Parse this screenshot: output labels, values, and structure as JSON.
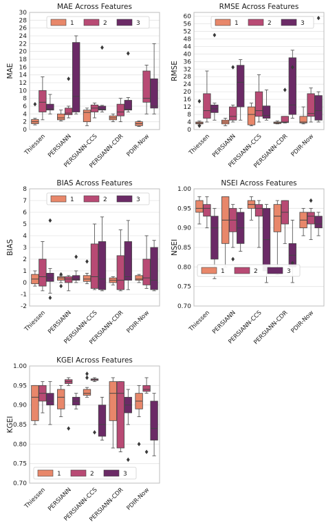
{
  "colors": {
    "series": [
      "#E8876A",
      "#B84A74",
      "#6B2A66"
    ],
    "axes_bg": "#ffffff",
    "grid": "#e4e4e4",
    "frame": "#bdbdbd",
    "whisker": "#444444"
  },
  "chart_data": [
    {
      "type": "box",
      "title": "MAE Across Features",
      "xlabel": "",
      "ylabel": "MAE",
      "ylim": [
        0,
        30
      ],
      "yticks": [
        0,
        2,
        4,
        6,
        8,
        10,
        12,
        14,
        16,
        18,
        20,
        22,
        24,
        26,
        28,
        30
      ],
      "legend_position": "top",
      "legend": [
        "1",
        "2",
        "3"
      ],
      "categories": [
        "Thiessen",
        "PERSIANN",
        "PERSIANN-CCS",
        "PERSIANN-CDR",
        "PDIR-Now"
      ],
      "series": [
        {
          "name": "1",
          "boxes": [
            {
              "min": 1.2,
              "q1": 1.5,
              "median": 2.0,
              "q3": 2.6,
              "max": 2.9,
              "outliers": [
                6.5
              ]
            },
            {
              "min": 2.2,
              "q1": 2.5,
              "median": 3.0,
              "q3": 4.0,
              "max": 5.0,
              "outliers": []
            },
            {
              "min": 1.0,
              "q1": 2.0,
              "median": 4.4,
              "q3": 5.0,
              "max": 5.5,
              "outliers": []
            },
            {
              "min": 2.0,
              "q1": 2.5,
              "median": 3.0,
              "q3": 3.5,
              "max": 4.0,
              "outliers": []
            },
            {
              "min": 0.8,
              "q1": 1.0,
              "median": 1.5,
              "q3": 2.0,
              "max": 2.2,
              "outliers": []
            }
          ]
        },
        {
          "name": "2",
          "boxes": [
            {
              "min": 2.5,
              "q1": 4.5,
              "median": 7.0,
              "q3": 10.0,
              "max": 13.5,
              "outliers": []
            },
            {
              "min": 3.0,
              "q1": 3.8,
              "median": 4.2,
              "q3": 5.5,
              "max": 6.0,
              "outliers": [
                13.0
              ]
            },
            {
              "min": 3.0,
              "q1": 4.5,
              "median": 5.5,
              "q3": 6.3,
              "max": 6.8,
              "outliers": []
            },
            {
              "min": 2.0,
              "q1": 3.5,
              "median": 4.5,
              "q3": 6.5,
              "max": 8.0,
              "outliers": []
            },
            {
              "min": 4.0,
              "q1": 7.0,
              "median": 8.0,
              "q3": 15.0,
              "max": 16.5,
              "outliers": []
            }
          ]
        },
        {
          "name": "3",
          "boxes": [
            {
              "min": 4.0,
              "q1": 5.0,
              "median": 5.3,
              "q3": 6.5,
              "max": 9.0,
              "outliers": []
            },
            {
              "min": 4.0,
              "q1": 4.5,
              "median": 8.5,
              "q3": 22.3,
              "max": 24.0,
              "outliers": []
            },
            {
              "min": 4.5,
              "q1": 5.0,
              "median": 5.2,
              "q3": 6.0,
              "max": 6.2,
              "outliers": [
                21.0
              ]
            },
            {
              "min": 4.5,
              "q1": 5.0,
              "median": 5.2,
              "q3": 7.5,
              "max": 8.2,
              "outliers": [
                19.5
              ]
            },
            {
              "min": 4.0,
              "q1": 5.5,
              "median": 6.0,
              "q3": 13.0,
              "max": 22.0,
              "outliers": []
            }
          ]
        }
      ]
    },
    {
      "type": "box",
      "title": "RMSE Across Features",
      "xlabel": "",
      "ylabel": "RMSE",
      "ylim": [
        0,
        62
      ],
      "yticks": [
        0,
        4,
        8,
        12,
        16,
        20,
        24,
        28,
        32,
        36,
        40,
        44,
        48,
        52,
        56,
        60
      ],
      "legend_position": "top",
      "legend": [
        "1",
        "2",
        "3"
      ],
      "categories": [
        "Thiessen",
        "PERSIANN",
        "PERSIANN-CCS",
        "PERSIANN-CDR",
        "PDIR-Now"
      ],
      "series": [
        {
          "name": "1",
          "boxes": [
            {
              "min": 2.5,
              "q1": 3.0,
              "median": 3.5,
              "q3": 4.0,
              "max": 4.5,
              "outliers": [
                2.0,
                15.0
              ]
            },
            {
              "min": 2.0,
              "q1": 3.0,
              "median": 4.0,
              "q3": 5.0,
              "max": 6.0,
              "outliers": []
            },
            {
              "min": 2.0,
              "q1": 2.5,
              "median": 8.0,
              "q3": 12.0,
              "max": 14.0,
              "outliers": []
            },
            {
              "min": 3.0,
              "q1": 3.2,
              "median": 3.6,
              "q3": 4.0,
              "max": 4.5,
              "outliers": []
            },
            {
              "min": 3.0,
              "q1": 3.5,
              "median": 4.0,
              "q3": 7.0,
              "max": 12.0,
              "outliers": []
            }
          ]
        },
        {
          "name": "2",
          "boxes": [
            {
              "min": 4.0,
              "q1": 6.0,
              "median": 10.0,
              "q3": 19.0,
              "max": 31.0,
              "outliers": []
            },
            {
              "min": 4.0,
              "q1": 5.0,
              "median": 7.0,
              "q3": 12.0,
              "max": 13.0,
              "outliers": [
                33.0
              ]
            },
            {
              "min": 4.0,
              "q1": 7.0,
              "median": 10.0,
              "q3": 20.0,
              "max": 29.0,
              "outliers": []
            },
            {
              "min": 3.5,
              "q1": 3.7,
              "median": 4.0,
              "q3": 7.0,
              "max": 7.0,
              "outliers": [
                21.0
              ]
            },
            {
              "min": 4.0,
              "q1": 7.0,
              "median": 8.5,
              "q3": 19.0,
              "max": 22.0,
              "outliers": []
            }
          ]
        },
        {
          "name": "3",
          "boxes": [
            {
              "min": 5.0,
              "q1": 9.0,
              "median": 11.0,
              "q3": 13.0,
              "max": 14.0,
              "outliers": [
                50.0
              ]
            },
            {
              "min": 5.0,
              "q1": 12.0,
              "median": 25.0,
              "q3": 34.0,
              "max": 37.0,
              "outliers": []
            },
            {
              "min": 5.0,
              "q1": 6.0,
              "median": 7.5,
              "q3": 12.5,
              "max": 21.0,
              "outliers": []
            },
            {
              "min": 6.0,
              "q1": 8.0,
              "median": 13.0,
              "q3": 38.0,
              "max": 42.0,
              "outliers": [
                33.0
              ]
            },
            {
              "min": 4.0,
              "q1": 5.0,
              "median": 10.0,
              "q3": 18.0,
              "max": 20.0,
              "outliers": [
                59.0
              ]
            }
          ]
        }
      ]
    },
    {
      "type": "box",
      "title": "BIAS Across Features",
      "xlabel": "",
      "ylabel": "BIAS",
      "ylim": [
        -2,
        8
      ],
      "yticks": [
        -2,
        -1,
        0,
        1,
        2,
        3,
        4,
        5,
        6,
        7,
        8
      ],
      "legend_position": "top",
      "legend": [
        "1",
        "2",
        "3"
      ],
      "categories": [
        "Thiessen",
        "PERSIANN",
        "PERSIANN-CCS",
        "PERSIANN-CDR",
        "PDIR-Now"
      ],
      "series": [
        {
          "name": "1",
          "boxes": [
            {
              "min": -0.3,
              "q1": -0.1,
              "median": 0.3,
              "q3": 0.7,
              "max": 1.0,
              "outliers": []
            },
            {
              "min": 0.0,
              "q1": 0.2,
              "median": 0.4,
              "q3": 0.5,
              "max": 0.6,
              "outliers": [
                -0.3,
                0.7
              ]
            },
            {
              "min": -0.1,
              "q1": 0.1,
              "median": 0.3,
              "q3": 0.6,
              "max": 0.8,
              "outliers": [
                1.8
              ]
            },
            {
              "min": -0.2,
              "q1": 0.0,
              "median": 0.2,
              "q3": 0.4,
              "max": 0.5,
              "outliers": []
            },
            {
              "min": 0.0,
              "q1": 0.2,
              "median": 0.3,
              "q3": 0.6,
              "max": 0.7,
              "outliers": []
            }
          ]
        },
        {
          "name": "2",
          "boxes": [
            {
              "min": -0.7,
              "q1": -0.3,
              "median": 0.5,
              "q3": 2.0,
              "max": 3.5,
              "outliers": []
            },
            {
              "min": -0.7,
              "q1": 0.0,
              "median": 0.3,
              "q3": 0.5,
              "max": 0.6,
              "outliers": []
            },
            {
              "min": -0.6,
              "q1": -0.5,
              "median": 0.5,
              "q3": 3.3,
              "max": 5.0,
              "outliers": []
            },
            {
              "min": -0.7,
              "q1": -0.6,
              "median": 0.2,
              "q3": 2.3,
              "max": 4.5,
              "outliers": []
            },
            {
              "min": -0.5,
              "q1": -0.2,
              "median": 0.4,
              "q3": 2.0,
              "max": 4.0,
              "outliers": []
            }
          ]
        },
        {
          "name": "3",
          "boxes": [
            {
              "min": -0.9,
              "q1": 0.1,
              "median": 0.4,
              "q3": 0.8,
              "max": 1.2,
              "outliers": [
                -1.3,
                5.3
              ]
            },
            {
              "min": 0.0,
              "q1": 0.2,
              "median": 0.3,
              "q3": 0.6,
              "max": 1.0,
              "outliers": [
                2.2
              ]
            },
            {
              "min": -0.7,
              "q1": -0.6,
              "median": 0.3,
              "q3": 3.5,
              "max": 5.6,
              "outliers": []
            },
            {
              "min": -0.6,
              "q1": 0.2,
              "median": 0.5,
              "q3": 3.5,
              "max": 5.3,
              "outliers": []
            },
            {
              "min": -0.7,
              "q1": -0.6,
              "median": 0.2,
              "q3": 3.0,
              "max": 3.6,
              "outliers": []
            }
          ]
        }
      ]
    },
    {
      "type": "box",
      "title": "NSEI Across Features",
      "xlabel": "",
      "ylabel": "NSEI",
      "ylim": [
        0.7,
        1.0
      ],
      "yticks": [
        0.7,
        0.75,
        0.8,
        0.85,
        0.9,
        0.95,
        1.0
      ],
      "legend_position": "bottom-left",
      "legend": [
        "1",
        "2",
        "3"
      ],
      "categories": [
        "Thiessen",
        "PERSIANN",
        "PERSIANN-CCS",
        "PERSIANN-CDR",
        "PDIR-Now"
      ],
      "series": [
        {
          "name": "1",
          "boxes": [
            {
              "min": 0.91,
              "q1": 0.94,
              "median": 0.95,
              "q3": 0.97,
              "max": 0.98,
              "outliers": []
            },
            {
              "min": 0.8,
              "q1": 0.86,
              "median": 0.92,
              "q3": 0.98,
              "max": 0.98,
              "outliers": []
            },
            {
              "min": 0.92,
              "q1": 0.95,
              "median": 0.96,
              "q3": 0.97,
              "max": 0.98,
              "outliers": []
            },
            {
              "min": 0.78,
              "q1": 0.89,
              "median": 0.93,
              "q3": 0.96,
              "max": 0.97,
              "outliers": []
            },
            {
              "min": 0.88,
              "q1": 0.9,
              "median": 0.92,
              "q3": 0.94,
              "max": 0.95,
              "outliers": []
            }
          ]
        },
        {
          "name": "2",
          "boxes": [
            {
              "min": 0.9,
              "q1": 0.93,
              "median": 0.95,
              "q3": 0.96,
              "max": 0.98,
              "outliers": []
            },
            {
              "min": 0.85,
              "q1": 0.89,
              "median": 0.92,
              "q3": 0.95,
              "max": 0.96,
              "outliers": [
                0.82
              ]
            },
            {
              "min": 0.85,
              "q1": 0.93,
              "median": 0.95,
              "q3": 0.96,
              "max": 0.97,
              "outliers": []
            },
            {
              "min": 0.86,
              "q1": 0.91,
              "median": 0.94,
              "q3": 0.97,
              "max": 0.97,
              "outliers": []
            },
            {
              "min": 0.87,
              "q1": 0.91,
              "median": 0.93,
              "q3": 0.94,
              "max": 0.95,
              "outliers": [
                0.97
              ]
            }
          ]
        },
        {
          "name": "3",
          "boxes": [
            {
              "min": 0.77,
              "q1": 0.82,
              "median": 0.9,
              "q3": 0.93,
              "max": 0.95,
              "outliers": []
            },
            {
              "min": 0.84,
              "q1": 0.86,
              "median": 0.9,
              "q3": 0.94,
              "max": 0.95,
              "outliers": []
            },
            {
              "min": 0.76,
              "q1": 0.79,
              "median": 0.87,
              "q3": 0.95,
              "max": 0.96,
              "outliers": []
            },
            {
              "min": 0.76,
              "q1": 0.8,
              "median": 0.83,
              "q3": 0.86,
              "max": 0.92,
              "outliers": [
                0.81
              ]
            },
            {
              "min": 0.88,
              "q1": 0.9,
              "median": 0.91,
              "q3": 0.93,
              "max": 0.94,
              "outliers": []
            }
          ]
        }
      ]
    },
    {
      "type": "box",
      "title": "KGEI Across Features",
      "xlabel": "",
      "ylabel": "KGEI",
      "ylim": [
        0.7,
        1.0
      ],
      "yticks": [
        0.7,
        0.75,
        0.8,
        0.85,
        0.9,
        0.95,
        1.0
      ],
      "legend_position": "bottom",
      "legend": [
        "1",
        "2",
        "3"
      ],
      "categories": [
        "Thiessen",
        "PERSIANN",
        "PERSIANN-CCS",
        "PERSIANN-CDR",
        "PDIR-Now"
      ],
      "series": [
        {
          "name": "1",
          "boxes": [
            {
              "min": 0.85,
              "q1": 0.86,
              "median": 0.92,
              "q3": 0.95,
              "max": 0.95,
              "outliers": []
            },
            {
              "min": 0.87,
              "q1": 0.89,
              "median": 0.92,
              "q3": 0.94,
              "max": 0.95,
              "outliers": []
            },
            {
              "min": 0.92,
              "q1": 0.925,
              "median": 0.93,
              "q3": 0.94,
              "max": 0.945,
              "outliers": [
                0.98,
                0.97
              ]
            },
            {
              "min": 0.79,
              "q1": 0.86,
              "median": 0.93,
              "q3": 0.96,
              "max": 0.97,
              "outliers": []
            },
            {
              "min": 0.87,
              "q1": 0.89,
              "median": 0.91,
              "q3": 0.93,
              "max": 0.95,
              "outliers": [
                0.8
              ]
            }
          ]
        },
        {
          "name": "2",
          "boxes": [
            {
              "min": 0.88,
              "q1": 0.91,
              "median": 0.93,
              "q3": 0.95,
              "max": 0.96,
              "outliers": []
            },
            {
              "min": 0.95,
              "q1": 0.955,
              "median": 0.96,
              "q3": 0.965,
              "max": 0.97,
              "outliers": [
                0.84
              ]
            },
            {
              "min": 0.96,
              "q1": 0.963,
              "median": 0.965,
              "q3": 0.967,
              "max": 0.97,
              "outliers": [
                0.83
              ]
            },
            {
              "min": 0.78,
              "q1": 0.79,
              "median": 0.93,
              "q3": 0.96,
              "max": 0.96,
              "outliers": []
            },
            {
              "min": 0.93,
              "q1": 0.935,
              "median": 0.94,
              "q3": 0.95,
              "max": 0.97,
              "outliers": [
                0.78
              ]
            }
          ]
        },
        {
          "name": "3",
          "boxes": [
            {
              "min": 0.85,
              "q1": 0.9,
              "median": 0.91,
              "q3": 0.93,
              "max": 0.96,
              "outliers": []
            },
            {
              "min": 0.89,
              "q1": 0.9,
              "median": 0.91,
              "q3": 0.92,
              "max": 0.93,
              "outliers": []
            },
            {
              "min": 0.81,
              "q1": 0.82,
              "median": 0.85,
              "q3": 0.9,
              "max": 0.92,
              "outliers": []
            },
            {
              "min": 0.85,
              "q1": 0.88,
              "median": 0.9,
              "q3": 0.92,
              "max": 0.94,
              "outliers": [
                0.76
              ]
            },
            {
              "min": 0.77,
              "q1": 0.81,
              "median": 0.84,
              "q3": 0.91,
              "max": 0.93,
              "outliers": []
            }
          ]
        }
      ]
    }
  ]
}
